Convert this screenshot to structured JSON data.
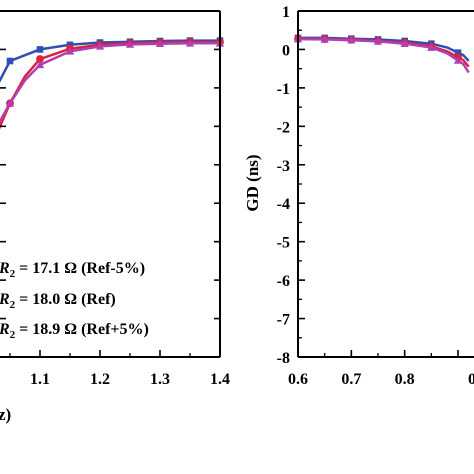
{
  "colors": {
    "blue": "#2f4fb3",
    "red": "#e0203b",
    "magenta": "#b13fb2",
    "axis": "#000000"
  },
  "chart_data": [
    {
      "type": "line",
      "title": "",
      "xlabel": "z)",
      "ylabel": "",
      "xlim": [
        1.0,
        1.4
      ],
      "ylim": [
        -8,
        1
      ],
      "x_ticks": [
        "1.1",
        "1.2",
        "1.3",
        "1.4"
      ],
      "grid": false,
      "legend_placement": "lower-left",
      "legend": [
        {
          "prefix": "R",
          "sub": "2",
          "text": " = 17.1 Ω (Ref-5%)",
          "marker": "square",
          "color": "#2f4fb3"
        },
        {
          "prefix": "R",
          "sub": "2",
          "text": " = 18.0 Ω (Ref)",
          "marker": "circle",
          "color": "#e0203b"
        },
        {
          "prefix": "R",
          "sub": "2",
          "text": " = 18.9 Ω (Ref+5%)",
          "marker": "triangle",
          "color": "#b13fb2"
        }
      ],
      "series": [
        {
          "marker": "square",
          "color": "#2f4fb3",
          "x": [
            0.97,
            1.0,
            1.02,
            1.05,
            1.1,
            1.15,
            1.2,
            1.25,
            1.3,
            1.35,
            1.4
          ],
          "y": [
            -3.2,
            -2.2,
            -1.2,
            -0.3,
            0.0,
            0.12,
            0.18,
            0.2,
            0.22,
            0.23,
            0.23
          ],
          "marked_x": [
            1.0,
            1.05,
            1.1,
            1.15,
            1.2,
            1.25,
            1.3,
            1.35,
            1.4
          ]
        },
        {
          "marker": "circle",
          "color": "#e0203b",
          "x": [
            0.97,
            1.0,
            1.025,
            1.05,
            1.075,
            1.1,
            1.15,
            1.2,
            1.25,
            1.3,
            1.35,
            1.4
          ],
          "y": [
            -3.6,
            -3.0,
            -2.3,
            -1.4,
            -0.7,
            -0.25,
            0.02,
            0.12,
            0.16,
            0.18,
            0.19,
            0.19
          ],
          "marked_x": [
            1.0,
            1.05,
            1.1,
            1.15,
            1.2,
            1.25,
            1.3,
            1.35,
            1.4
          ]
        },
        {
          "marker": "triangle",
          "color": "#b13fb2",
          "x": [
            0.97,
            1.0,
            1.025,
            1.05,
            1.075,
            1.1,
            1.15,
            1.2,
            1.25,
            1.3,
            1.35,
            1.4
          ],
          "y": [
            -3.4,
            -2.7,
            -2.1,
            -1.4,
            -0.8,
            -0.4,
            -0.05,
            0.08,
            0.13,
            0.15,
            0.16,
            0.16
          ],
          "marked_x": [
            1.0,
            1.05,
            1.1,
            1.15,
            1.2,
            1.25,
            1.3,
            1.35,
            1.4
          ]
        }
      ]
    },
    {
      "type": "line",
      "title": "",
      "xlabel": "",
      "ylabel": "GD (ns)",
      "xlim": [
        0.6,
        0.92
      ],
      "ylim": [
        -8,
        1
      ],
      "x_ticks": [
        "0.6",
        "0.7",
        "0.8"
      ],
      "x_tick_partial": "0",
      "y_ticks": [
        "1",
        "0",
        "-1",
        "-2",
        "-3",
        "-4",
        "-5",
        "-6",
        "-7",
        "-8"
      ],
      "grid": false,
      "series": [
        {
          "marker": "square",
          "color": "#2f4fb3",
          "x": [
            0.6,
            0.65,
            0.7,
            0.75,
            0.8,
            0.85,
            0.88,
            0.91,
            0.92
          ],
          "y": [
            0.3,
            0.3,
            0.28,
            0.26,
            0.22,
            0.15,
            0.05,
            -0.15,
            -0.3
          ],
          "marked_x": [
            0.6,
            0.65,
            0.7,
            0.75,
            0.8,
            0.85,
            0.9
          ]
        },
        {
          "marker": "circle",
          "color": "#e0203b",
          "x": [
            0.6,
            0.65,
            0.7,
            0.75,
            0.8,
            0.85,
            0.88,
            0.91,
            0.92
          ],
          "y": [
            0.28,
            0.27,
            0.25,
            0.22,
            0.17,
            0.08,
            -0.05,
            -0.28,
            -0.45
          ],
          "marked_x": [
            0.6,
            0.65,
            0.7,
            0.75,
            0.8,
            0.85,
            0.9
          ]
        },
        {
          "marker": "triangle",
          "color": "#b13fb2",
          "x": [
            0.6,
            0.65,
            0.7,
            0.75,
            0.8,
            0.85,
            0.88,
            0.91,
            0.92
          ],
          "y": [
            0.27,
            0.26,
            0.24,
            0.21,
            0.15,
            0.05,
            -0.1,
            -0.38,
            -0.6
          ],
          "marked_x": [
            0.6,
            0.65,
            0.7,
            0.75,
            0.8,
            0.85,
            0.9
          ]
        }
      ]
    }
  ]
}
